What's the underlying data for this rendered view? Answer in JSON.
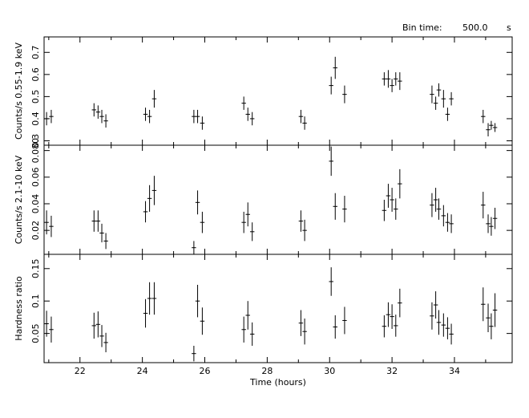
{
  "header": {
    "bin_label": "Bin time:",
    "bin_value": "500.0",
    "bin_unit": "s"
  },
  "chart_data": {
    "type": "scatter",
    "xlabel": "Time (hours)",
    "x_tick_labels": [
      "22",
      "24",
      "26",
      "28",
      "30",
      "32",
      "34"
    ],
    "xlim": [
      20.85,
      35.85
    ],
    "x_half_width": 0.07,
    "panels": [
      {
        "id": "soft",
        "ylabel": "Counts/s 0.55-1.9 keV",
        "ylim": [
          0.28,
          0.77
        ],
        "y_ticks": [
          0.3,
          0.4,
          0.5,
          0.6,
          0.7
        ],
        "y_tick_labels": [
          "0.3",
          "0.4",
          "0.5",
          "0.6",
          "0.7"
        ],
        "points": [
          {
            "x": 20.93,
            "y": 0.4,
            "err": 0.03
          },
          {
            "x": 21.08,
            "y": 0.41,
            "err": 0.03
          },
          {
            "x": 22.45,
            "y": 0.44,
            "err": 0.03
          },
          {
            "x": 22.58,
            "y": 0.43,
            "err": 0.03
          },
          {
            "x": 22.7,
            "y": 0.41,
            "err": 0.03
          },
          {
            "x": 22.83,
            "y": 0.39,
            "err": 0.03
          },
          {
            "x": 24.1,
            "y": 0.42,
            "err": 0.03
          },
          {
            "x": 24.23,
            "y": 0.41,
            "err": 0.03
          },
          {
            "x": 24.38,
            "y": 0.49,
            "err": 0.04
          },
          {
            "x": 25.65,
            "y": 0.41,
            "err": 0.03
          },
          {
            "x": 25.77,
            "y": 0.41,
            "err": 0.03
          },
          {
            "x": 25.92,
            "y": 0.38,
            "err": 0.03
          },
          {
            "x": 27.25,
            "y": 0.47,
            "err": 0.03
          },
          {
            "x": 27.38,
            "y": 0.42,
            "err": 0.03
          },
          {
            "x": 27.52,
            "y": 0.4,
            "err": 0.03
          },
          {
            "x": 29.08,
            "y": 0.41,
            "err": 0.03
          },
          {
            "x": 29.2,
            "y": 0.38,
            "err": 0.03
          },
          {
            "x": 30.05,
            "y": 0.55,
            "err": 0.04
          },
          {
            "x": 30.18,
            "y": 0.63,
            "err": 0.05
          },
          {
            "x": 30.48,
            "y": 0.51,
            "err": 0.04
          },
          {
            "x": 31.75,
            "y": 0.58,
            "err": 0.03
          },
          {
            "x": 31.88,
            "y": 0.58,
            "err": 0.04
          },
          {
            "x": 32.0,
            "y": 0.55,
            "err": 0.03
          },
          {
            "x": 32.12,
            "y": 0.58,
            "err": 0.03
          },
          {
            "x": 32.25,
            "y": 0.57,
            "err": 0.04
          },
          {
            "x": 33.28,
            "y": 0.51,
            "err": 0.04
          },
          {
            "x": 33.4,
            "y": 0.47,
            "err": 0.03
          },
          {
            "x": 33.5,
            "y": 0.53,
            "err": 0.03
          },
          {
            "x": 33.65,
            "y": 0.49,
            "err": 0.04
          },
          {
            "x": 33.78,
            "y": 0.42,
            "err": 0.03
          },
          {
            "x": 33.9,
            "y": 0.49,
            "err": 0.03
          },
          {
            "x": 34.92,
            "y": 0.41,
            "err": 0.03
          },
          {
            "x": 35.08,
            "y": 0.35,
            "err": 0.03
          },
          {
            "x": 35.18,
            "y": 0.37,
            "err": 0.02
          },
          {
            "x": 35.3,
            "y": 0.36,
            "err": 0.02
          }
        ]
      },
      {
        "id": "hard",
        "ylabel": "Counts/s 2.1-10 keV",
        "ylim": [
          0.002,
          0.084
        ],
        "y_ticks": [
          0.02,
          0.04,
          0.06,
          0.08
        ],
        "y_tick_labels": [
          "0.02",
          "0.04",
          "0.06",
          "0.080"
        ],
        "points": [
          {
            "x": 20.93,
            "y": 0.026,
            "err": 0.009
          },
          {
            "x": 21.08,
            "y": 0.023,
            "err": 0.008
          },
          {
            "x": 22.45,
            "y": 0.027,
            "err": 0.008
          },
          {
            "x": 22.58,
            "y": 0.027,
            "err": 0.008
          },
          {
            "x": 22.7,
            "y": 0.018,
            "err": 0.007
          },
          {
            "x": 22.83,
            "y": 0.012,
            "err": 0.006
          },
          {
            "x": 24.1,
            "y": 0.034,
            "err": 0.008
          },
          {
            "x": 24.23,
            "y": 0.044,
            "err": 0.01
          },
          {
            "x": 24.38,
            "y": 0.05,
            "err": 0.011
          },
          {
            "x": 25.65,
            "y": 0.007,
            "err": 0.005
          },
          {
            "x": 25.77,
            "y": 0.041,
            "err": 0.009
          },
          {
            "x": 25.92,
            "y": 0.026,
            "err": 0.008
          },
          {
            "x": 27.25,
            "y": 0.026,
            "err": 0.008
          },
          {
            "x": 27.38,
            "y": 0.032,
            "err": 0.009
          },
          {
            "x": 27.52,
            "y": 0.019,
            "err": 0.007
          },
          {
            "x": 29.08,
            "y": 0.027,
            "err": 0.008
          },
          {
            "x": 29.2,
            "y": 0.02,
            "err": 0.008
          },
          {
            "x": 30.05,
            "y": 0.072,
            "err": 0.011
          },
          {
            "x": 30.18,
            "y": 0.038,
            "err": 0.01
          },
          {
            "x": 30.48,
            "y": 0.036,
            "err": 0.01
          },
          {
            "x": 31.75,
            "y": 0.035,
            "err": 0.008
          },
          {
            "x": 31.88,
            "y": 0.046,
            "err": 0.009
          },
          {
            "x": 32.0,
            "y": 0.043,
            "err": 0.009
          },
          {
            "x": 32.12,
            "y": 0.036,
            "err": 0.008
          },
          {
            "x": 32.25,
            "y": 0.055,
            "err": 0.011
          },
          {
            "x": 33.28,
            "y": 0.039,
            "err": 0.009
          },
          {
            "x": 33.4,
            "y": 0.043,
            "err": 0.009
          },
          {
            "x": 33.5,
            "y": 0.036,
            "err": 0.008
          },
          {
            "x": 33.65,
            "y": 0.031,
            "err": 0.008
          },
          {
            "x": 33.78,
            "y": 0.026,
            "err": 0.007
          },
          {
            "x": 33.9,
            "y": 0.025,
            "err": 0.007
          },
          {
            "x": 34.92,
            "y": 0.039,
            "err": 0.01
          },
          {
            "x": 35.08,
            "y": 0.025,
            "err": 0.007
          },
          {
            "x": 35.18,
            "y": 0.023,
            "err": 0.007
          },
          {
            "x": 35.3,
            "y": 0.029,
            "err": 0.008
          }
        ]
      },
      {
        "id": "ratio",
        "ylabel": "Hardness ratio",
        "ylim": [
          0.005,
          0.172
        ],
        "y_ticks": [
          0.05,
          0.1,
          0.15
        ],
        "y_tick_labels": [
          "0.05",
          "0.1",
          "0.15"
        ],
        "points": [
          {
            "x": 20.93,
            "y": 0.065,
            "err": 0.02
          },
          {
            "x": 21.08,
            "y": 0.056,
            "err": 0.02
          },
          {
            "x": 22.45,
            "y": 0.062,
            "err": 0.02
          },
          {
            "x": 22.58,
            "y": 0.064,
            "err": 0.02
          },
          {
            "x": 22.7,
            "y": 0.046,
            "err": 0.017
          },
          {
            "x": 22.83,
            "y": 0.036,
            "err": 0.015
          },
          {
            "x": 24.1,
            "y": 0.081,
            "err": 0.022
          },
          {
            "x": 24.23,
            "y": 0.104,
            "err": 0.025
          },
          {
            "x": 24.38,
            "y": 0.104,
            "err": 0.025
          },
          {
            "x": 25.65,
            "y": 0.019,
            "err": 0.012
          },
          {
            "x": 25.77,
            "y": 0.1,
            "err": 0.025
          },
          {
            "x": 25.92,
            "y": 0.069,
            "err": 0.021
          },
          {
            "x": 27.25,
            "y": 0.056,
            "err": 0.02
          },
          {
            "x": 27.38,
            "y": 0.078,
            "err": 0.022
          },
          {
            "x": 27.52,
            "y": 0.049,
            "err": 0.018
          },
          {
            "x": 29.08,
            "y": 0.066,
            "err": 0.02
          },
          {
            "x": 29.2,
            "y": 0.053,
            "err": 0.02
          },
          {
            "x": 30.05,
            "y": 0.13,
            "err": 0.022
          },
          {
            "x": 30.18,
            "y": 0.06,
            "err": 0.018
          },
          {
            "x": 30.48,
            "y": 0.07,
            "err": 0.021
          },
          {
            "x": 31.75,
            "y": 0.061,
            "err": 0.017
          },
          {
            "x": 31.88,
            "y": 0.079,
            "err": 0.019
          },
          {
            "x": 32.0,
            "y": 0.076,
            "err": 0.019
          },
          {
            "x": 32.12,
            "y": 0.062,
            "err": 0.017
          },
          {
            "x": 32.25,
            "y": 0.097,
            "err": 0.022
          },
          {
            "x": 33.28,
            "y": 0.077,
            "err": 0.021
          },
          {
            "x": 33.4,
            "y": 0.094,
            "err": 0.021
          },
          {
            "x": 33.5,
            "y": 0.067,
            "err": 0.019
          },
          {
            "x": 33.65,
            "y": 0.063,
            "err": 0.018
          },
          {
            "x": 33.78,
            "y": 0.058,
            "err": 0.017
          },
          {
            "x": 33.9,
            "y": 0.049,
            "err": 0.016
          },
          {
            "x": 34.92,
            "y": 0.095,
            "err": 0.026
          },
          {
            "x": 35.08,
            "y": 0.074,
            "err": 0.022
          },
          {
            "x": 35.18,
            "y": 0.061,
            "err": 0.02
          },
          {
            "x": 35.3,
            "y": 0.086,
            "err": 0.026
          }
        ]
      }
    ]
  }
}
